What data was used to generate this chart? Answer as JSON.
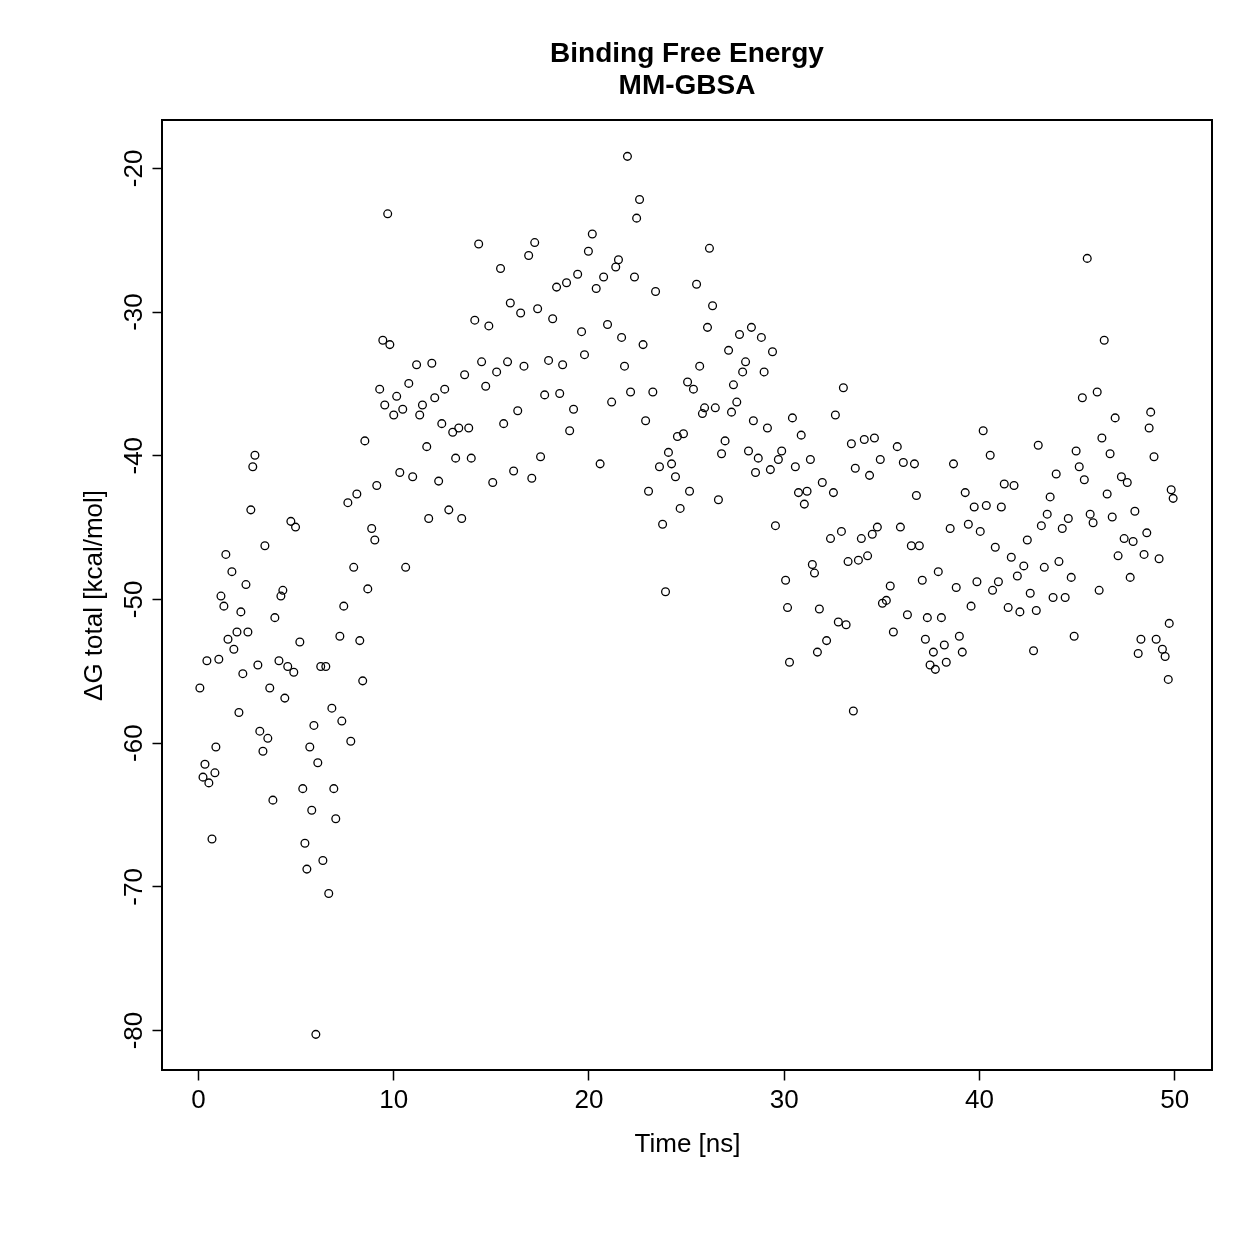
{
  "chart_data": {
    "type": "scatter",
    "title": "Binding Free Energy",
    "subtitle": "MM-GBSA",
    "xlabel": "Time [ns]",
    "ylabel": "ΔG total [kcal/mol]",
    "x": [
      0.1,
      0.26,
      0.36,
      0.46,
      0.56,
      0.72,
      0.87,
      0.92,
      1.07,
      1.18,
      1.33,
      1.43,
      1.54,
      1.74,
      1.84,
      2.0,
      2.1,
      2.2,
      2.3,
      2.46,
      2.56,
      2.71,
      2.81,
      2.92,
      3.07,
      3.17,
      3.33,
      3.43,
      3.58,
      3.68,
      3.84,
      3.94,
      4.15,
      4.25,
      4.35,
      4.45,
      4.6,
      4.76,
      4.91,
      5.0,
      5.22,
      5.37,
      5.48,
      5.58,
      5.73,
      5.83,
      5.94,
      6.04,
      6.14,
      6.29,
      6.4,
      6.55,
      6.7,
      6.86,
      6.96,
      7.06,
      7.27,
      7.37,
      7.47,
      7.68,
      7.83,
      7.98,
      8.14,
      8.29,
      8.44,
      8.55,
      8.7,
      8.9,
      9.06,
      9.16,
      9.31,
      9.47,
      9.57,
      9.72,
      9.83,
      10.03,
      10.18,
      10.34,
      10.49,
      10.64,
      10.8,
      11.0,
      11.2,
      11.36,
      11.5,
      11.72,
      11.82,
      11.98,
      12.13,
      12.33,
      12.49,
      12.64,
      12.85,
      13.05,
      13.2,
      13.36,
      13.51,
      13.66,
      13.87,
      14.0,
      14.18,
      14.38,
      14.53,
      14.74,
      14.9,
      15.1,
      15.3,
      15.5,
      15.66,
      15.86,
      16.0,
      16.17,
      16.38,
      16.53,
      16.7,
      16.94,
      17.1,
      17.25,
      17.4,
      17.55,
      17.76,
      17.96,
      18.17,
      18.37,
      18.53,
      18.68,
      18.88,
      19.04,
      19.24,
      19.45,
      19.65,
      19.8,
      20.0,
      20.2,
      20.4,
      20.6,
      20.78,
      20.98,
      21.19,
      21.4,
      21.54,
      21.7,
      21.85,
      22.0,
      22.16,
      22.36,
      22.47,
      22.62,
      22.8,
      22.93,
      23.08,
      23.3,
      23.44,
      23.64,
      23.8,
      23.95,
      24.1,
      24.26,
      24.46,
      24.56,
      24.7,
      24.87,
      25.08,
      25.18,
      25.38,
      25.54,
      25.7,
      25.84,
      25.95,
      26.1,
      26.2,
      26.36,
      26.5,
      26.66,
      26.82,
      27.0,
      27.18,
      27.33,
      27.43,
      27.6,
      27.74,
      27.9,
      28.05,
      28.2,
      28.35,
      28.45,
      28.56,
      28.7,
      28.86,
      29.0,
      29.17,
      29.32,
      29.43,
      29.58,
      29.73,
      29.9,
      30.1,
      30.2,
      30.3,
      30.45,
      30.6,
      30.76,
      30.9,
      31.06,
      31.2,
      31.37,
      31.47,
      31.58,
      31.73,
      31.83,
      31.98,
      32.2,
      32.4,
      32.55,
      32.65,
      32.8,
      32.96,
      33.06,
      33.2,
      33.3,
      33.47,
      33.57,
      33.67,
      33.83,
      33.98,
      34.13,
      34.3,
      34.4,
      34.54,
      34.65,
      34.8,
      34.95,
      35.06,
      35.26,
      35.46,
      35.62,
      35.82,
      35.98,
      36.13,
      36.34,
      36.54,
      36.7,
      36.8,
      36.95,
      37.1,
      37.26,
      37.36,
      37.5,
      37.67,
      37.77,
      37.92,
      38.08,
      38.23,
      38.33,
      38.53,
      38.7,
      38.84,
      39.0,
      39.15,
      39.3,
      39.46,
      39.6,
      39.76,
      39.9,
      40.07,
      40.22,
      40.38,
      40.58,
      40.7,
      40.84,
      41.0,
      41.15,
      41.3,
      41.5,
      41.66,
      41.8,
      41.97,
      42.1,
      42.3,
      42.48,
      42.63,
      42.8,
      42.94,
      43.04,
      43.2,
      43.35,
      43.5,
      43.65,
      43.8,
      43.96,
      44.1,
      44.27,
      44.42,
      44.58,
      44.73,
      44.88,
      44.98,
      45.14,
      45.3,
      45.4,
      45.55,
      45.7,
      45.85,
      46.06,
      46.16,
      46.3,
      46.42,
      46.57,
      46.72,
      46.83,
      46.98,
      47.13,
      47.3,
      47.44,
      47.6,
      47.75,
      47.9,
      47.99,
      48.16,
      48.3,
      48.46,
      48.6,
      48.72,
      48.8,
      48.97,
      49.08,
      49.23,
      49.4,
      49.54,
      49.7,
      49.75,
      49.85,
      49.95
    ],
    "values": [
      -56.2,
      -62.4,
      -61.5,
      -54.3,
      -62.8,
      -66.7,
      -62.1,
      -60.3,
      -54.2,
      -49.8,
      -50.5,
      -46.9,
      -52.8,
      -48.1,
      -53.5,
      -52.3,
      -57.9,
      -50.9,
      -55.2,
      -49.0,
      -52.3,
      -43.8,
      -40.8,
      -40.0,
      -54.6,
      -59.2,
      -60.6,
      -46.3,
      -59.7,
      -56.2,
      -64.0,
      -51.3,
      -54.3,
      -49.8,
      -49.4,
      -56.9,
      -54.7,
      -44.6,
      -55.1,
      -45.0,
      -53.0,
      -63.2,
      -67.0,
      -68.8,
      -60.3,
      -64.7,
      -58.8,
      -80.3,
      -61.4,
      -54.7,
      -68.2,
      -54.7,
      -70.5,
      -57.6,
      -63.2,
      -65.3,
      -52.6,
      -58.5,
      -50.5,
      -43.3,
      -59.9,
      -47.8,
      -42.7,
      -52.9,
      -55.7,
      -39.0,
      -49.3,
      -45.1,
      -45.9,
      -42.1,
      -35.4,
      -32.0,
      -36.5,
      -23.2,
      -32.3,
      -37.2,
      -35.9,
      -41.2,
      -36.8,
      -47.8,
      -35.0,
      -41.5,
      -33.7,
      -37.2,
      -36.5,
      -39.4,
      -44.4,
      -33.6,
      -36.0,
      -41.8,
      -37.8,
      -35.4,
      -43.8,
      -38.4,
      -40.2,
      -38.1,
      -44.4,
      -34.4,
      -38.1,
      -40.2,
      -30.6,
      -25.3,
      -33.5,
      -35.2,
      -31.0,
      -41.9,
      -34.2,
      -27.0,
      -37.8,
      -33.5,
      -29.4,
      -41.1,
      -36.9,
      -30.1,
      -33.8,
      -26.1,
      -41.6,
      -25.2,
      -29.8,
      -40.1,
      -35.8,
      -33.4,
      -30.5,
      -28.3,
      -35.7,
      -33.7,
      -28.0,
      -38.3,
      -36.8,
      -27.4,
      -31.4,
      -33.0,
      -25.8,
      -24.6,
      -28.4,
      -40.6,
      -27.6,
      -30.9,
      -36.3,
      -26.9,
      -26.4,
      -31.8,
      -33.8,
      -19.2,
      -35.6,
      -27.6,
      -23.5,
      -22.2,
      -32.3,
      -37.6,
      -42.5,
      -35.6,
      -28.6,
      -40.8,
      -44.8,
      -49.5,
      -39.8,
      -40.6,
      -41.5,
      -38.7,
      -43.7,
      -38.5,
      -34.9,
      -42.5,
      -35.4,
      -28.1,
      -33.8,
      -37.1,
      -36.7,
      -31.1,
      -25.6,
      -29.6,
      -36.7,
      -43.1,
      -39.9,
      -39.0,
      -32.7,
      -37.0,
      -35.1,
      -36.3,
      -31.6,
      -34.2,
      -33.5,
      -39.7,
      -31.1,
      -37.6,
      -41.2,
      -40.2,
      -31.8,
      -34.2,
      -38.1,
      -41.0,
      -32.8,
      -44.9,
      -40.3,
      -39.7,
      -48.7,
      -50.6,
      -54.4,
      -37.4,
      -40.8,
      -42.6,
      -38.6,
      -43.4,
      -42.5,
      -40.3,
      -47.6,
      -48.2,
      -53.7,
      -50.7,
      -41.9,
      -52.9,
      -45.8,
      -42.6,
      -37.2,
      -51.6,
      -45.3,
      -35.3,
      -51.8,
      -47.4,
      -39.2,
      -57.8,
      -40.9,
      -47.3,
      -45.8,
      -38.9,
      -47.0,
      -41.4,
      -45.5,
      -38.8,
      -45.0,
      -40.3,
      -50.3,
      -50.1,
      -49.1,
      -52.3,
      -39.4,
      -45.0,
      -40.5,
      -51.1,
      -46.3,
      -40.6,
      -42.8,
      -46.3,
      -48.7,
      -52.8,
      -51.3,
      -54.6,
      -53.7,
      -54.9,
      -48.1,
      -51.3,
      -53.2,
      -54.4,
      -45.1,
      -40.6,
      -49.2,
      -52.6,
      -53.7,
      -42.6,
      -44.8,
      -50.5,
      -43.6,
      -48.8,
      -45.3,
      -38.3,
      -43.5,
      -40.0,
      -49.4,
      -46.4,
      -48.8,
      -43.6,
      -42.0,
      -50.6,
      -47.1,
      -42.1,
      -48.4,
      -50.9,
      -47.7,
      -45.9,
      -49.6,
      -53.6,
      -50.8,
      -39.3,
      -44.9,
      -47.8,
      -44.1,
      -42.9,
      -49.9,
      -41.3,
      -47.4,
      -45.1,
      -49.9,
      -44.4,
      -48.5,
      -52.6,
      -39.7,
      -40.8,
      -36.0,
      -41.7,
      -26.3,
      -44.1,
      -44.7,
      -35.6,
      -49.4,
      -38.8,
      -32.0,
      -42.7,
      -39.9,
      -44.3,
      -37.4,
      -47.0,
      -41.5,
      -45.8,
      -41.9,
      -48.5,
      -46.0,
      -43.9,
      -53.8,
      -52.8,
      -46.9,
      -45.4,
      -38.1,
      -37.0,
      -40.1,
      -52.8,
      -47.2,
      -53.5,
      -54.0,
      -55.6,
      -51.7,
      -42.4,
      -43.0
    ],
    "color": "#000000",
    "marker": "circle",
    "xlim": [
      -1.84,
      51.94
    ],
    "ylim": [
      -82.78,
      -16.67
    ],
    "xticks": [
      0,
      10,
      20,
      30,
      40,
      50
    ],
    "yticks": [
      -80,
      -70,
      -60,
      -50,
      -40,
      -30,
      -20
    ],
    "grid": false
  }
}
